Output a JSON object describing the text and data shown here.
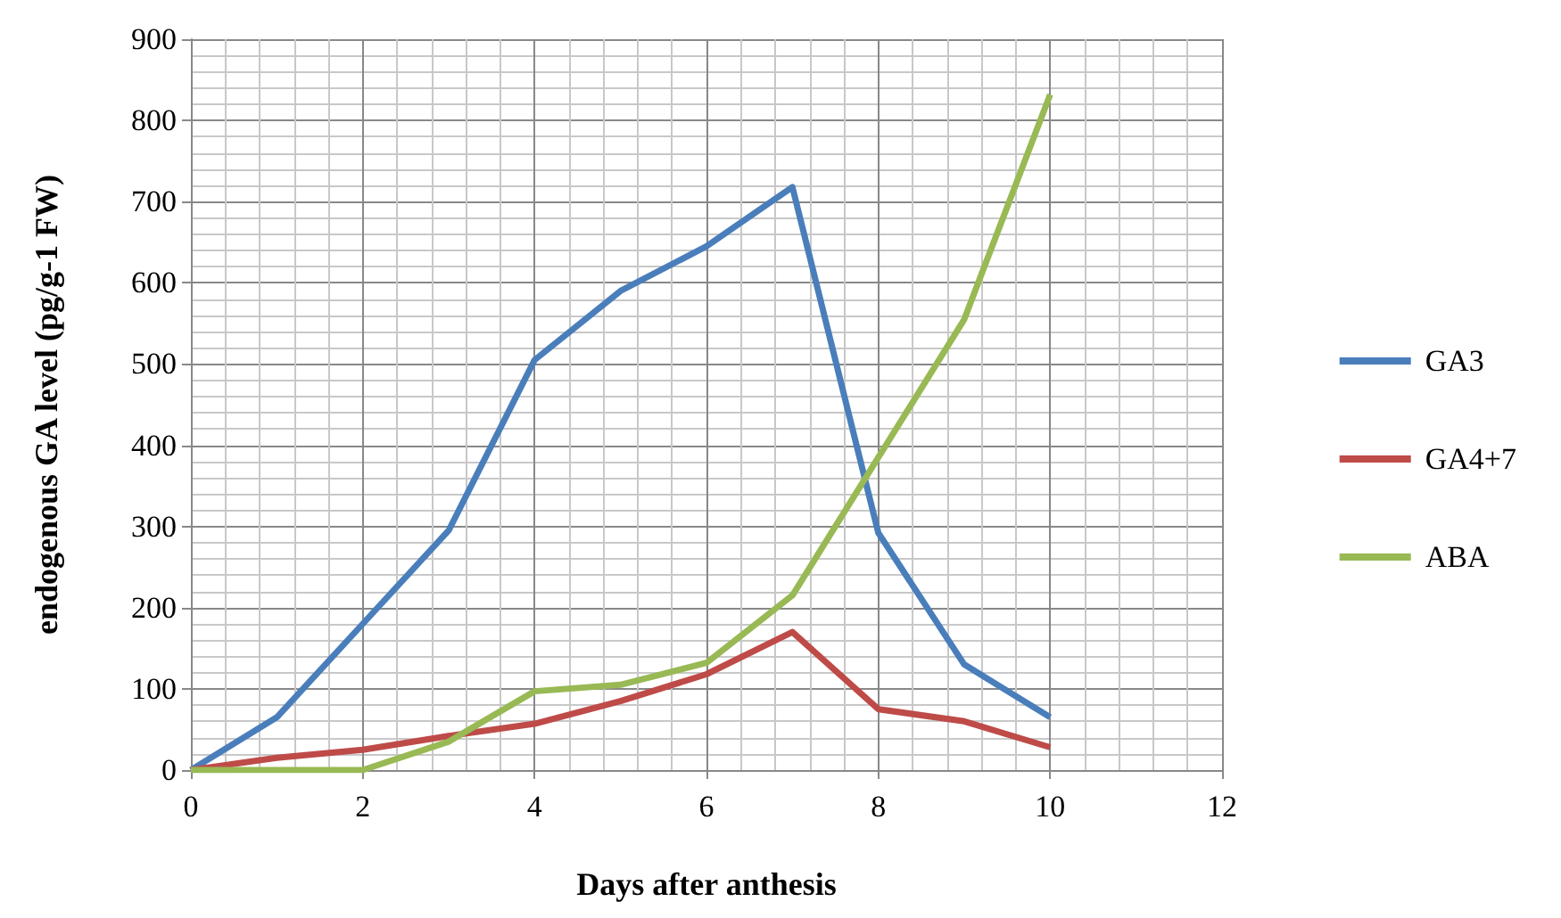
{
  "chart_data": {
    "type": "line",
    "xlabel": "Days after anthesis",
    "ylabel": "endogenous GA level (pg/g-1 FW)",
    "x": [
      0,
      1,
      2,
      3,
      4,
      5,
      6,
      7,
      8,
      9,
      10
    ],
    "series": [
      {
        "name": "GA3",
        "color": "#4a7ebb",
        "values": [
          0,
          65,
          180,
          295,
          505,
          590,
          645,
          718,
          292,
          130,
          65
        ]
      },
      {
        "name": "GA4+7",
        "color": "#be4b48",
        "values": [
          0,
          15,
          25,
          42,
          57,
          85,
          118,
          170,
          75,
          60,
          28
        ]
      },
      {
        "name": "ABA",
        "color": "#98b954",
        "values": [
          0,
          0,
          0,
          35,
          97,
          105,
          132,
          215,
          385,
          555,
          832
        ]
      }
    ],
    "xlim": [
      0,
      12
    ],
    "xticks": [
      0,
      2,
      4,
      6,
      8,
      10,
      12
    ],
    "ylim": [
      0,
      900
    ],
    "yticks": [
      0,
      100,
      200,
      300,
      400,
      500,
      600,
      700,
      800,
      900
    ],
    "grid": true,
    "legend": "right",
    "marker": "none",
    "line_style": "solid"
  }
}
